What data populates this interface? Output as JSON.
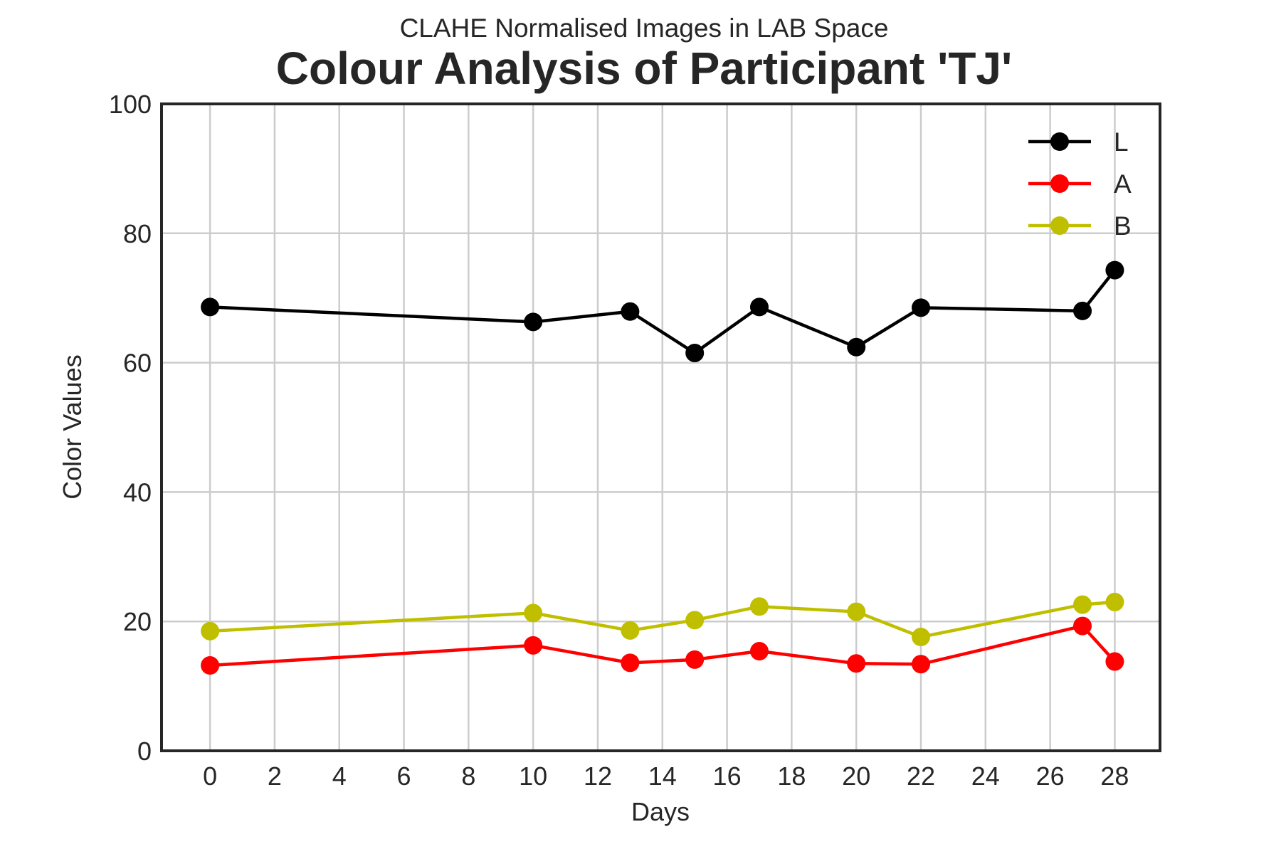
{
  "chart_data": {
    "type": "line",
    "title": "Colour Analysis of Participant 'TJ'",
    "subtitle": "CLAHE Normalised Images in LAB Space",
    "xlabel": "Days",
    "ylabel": "Color Values",
    "xlim": [
      -1.5,
      29.4
    ],
    "ylim": [
      0,
      100
    ],
    "xticks": [
      0,
      2,
      4,
      6,
      8,
      10,
      12,
      14,
      16,
      18,
      20,
      22,
      24,
      26,
      28
    ],
    "yticks": [
      0,
      20,
      40,
      60,
      80,
      100
    ],
    "grid": true,
    "legend_position": "top-right",
    "x": [
      0,
      10,
      13,
      15,
      17,
      20,
      22,
      27,
      28
    ],
    "series": [
      {
        "name": "L",
        "color": "#000000",
        "values": [
          68.6,
          66.3,
          67.9,
          61.5,
          68.6,
          62.4,
          68.5,
          68.0,
          74.3
        ]
      },
      {
        "name": "A",
        "color": "#ff0000",
        "values": [
          13.2,
          16.3,
          13.6,
          14.1,
          15.4,
          13.5,
          13.4,
          19.3,
          13.8
        ]
      },
      {
        "name": "B",
        "color": "#bfbf00",
        "values": [
          18.5,
          21.3,
          18.6,
          20.2,
          22.3,
          21.5,
          17.6,
          22.6,
          23.0
        ]
      }
    ]
  }
}
